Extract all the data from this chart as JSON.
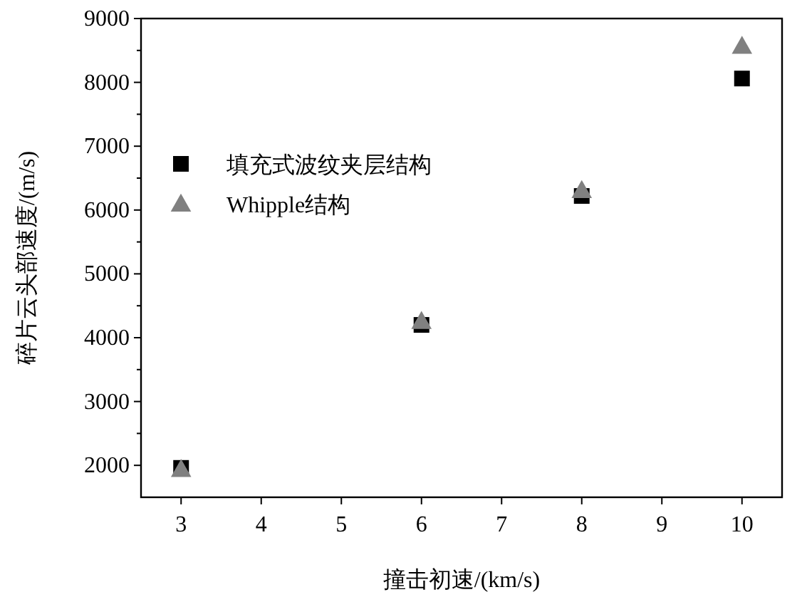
{
  "chart_data": {
    "type": "scatter",
    "xlabel": "撞击初速/(km/s)",
    "ylabel": "碎片云头部速度/(m/s)",
    "x": [
      3,
      6,
      8,
      10
    ],
    "series": [
      {
        "name": "填充式波纹夹层结构",
        "color": "#000000",
        "marker": "square",
        "values": [
          1960,
          4200,
          6220,
          8060
        ]
      },
      {
        "name": "Whipple结构",
        "color": "#808080",
        "marker": "triangle",
        "values": [
          1940,
          4260,
          6310,
          8570
        ]
      }
    ],
    "xlim": [
      2.5,
      10.5
    ],
    "xticks": [
      3,
      4,
      5,
      6,
      7,
      8,
      9,
      10
    ],
    "ylim": [
      1500,
      9000
    ],
    "yticks": [
      2000,
      3000,
      4000,
      5000,
      6000,
      7000,
      8000,
      9000
    ],
    "legend": "left",
    "grid": false
  }
}
